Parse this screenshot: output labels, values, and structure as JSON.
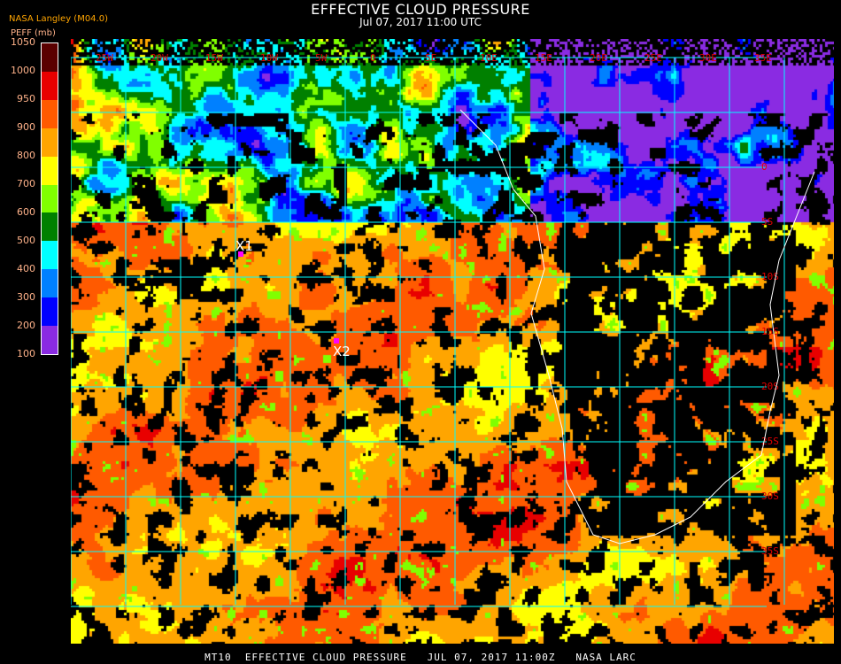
{
  "header": {
    "title": "EFFECTIVE CLOUD PRESSURE",
    "subtitle": "Jul 07, 2017 11:00 UTC",
    "org": "NASA Langley (M04.0)"
  },
  "legend": {
    "unit": "PEFF (mb)",
    "ticks": [
      "1050",
      "1000",
      "950",
      "900",
      "800",
      "700",
      "600",
      "500",
      "400",
      "300",
      "200",
      "100"
    ],
    "colors": [
      "#5a0000",
      "#e80000",
      "#ff5a00",
      "#ffa500",
      "#ffff00",
      "#80ff00",
      "#008000",
      "#00ffff",
      "#0080ff",
      "#0000ff",
      "#8a2be2"
    ]
  },
  "map": {
    "longitude_labels": [
      "25W",
      "20W",
      "15W",
      "10W",
      "5W",
      "0",
      "5E",
      "10E",
      "15E",
      "20E",
      "25E",
      "30E",
      "35E"
    ],
    "latitude_labels": [
      "0",
      "5S",
      "10S",
      "15S",
      "20S",
      "25S",
      "30S",
      "35S"
    ],
    "grid_color": "#00ffff",
    "markers": [
      {
        "label": "X1",
        "color": "#ff00ff"
      },
      {
        "label": "X2",
        "color": "#ff00ff"
      }
    ]
  },
  "footer": "MT10  EFFECTIVE CLOUD PRESSURE   JUL 07, 2017 11:00Z   NASA LARC"
}
